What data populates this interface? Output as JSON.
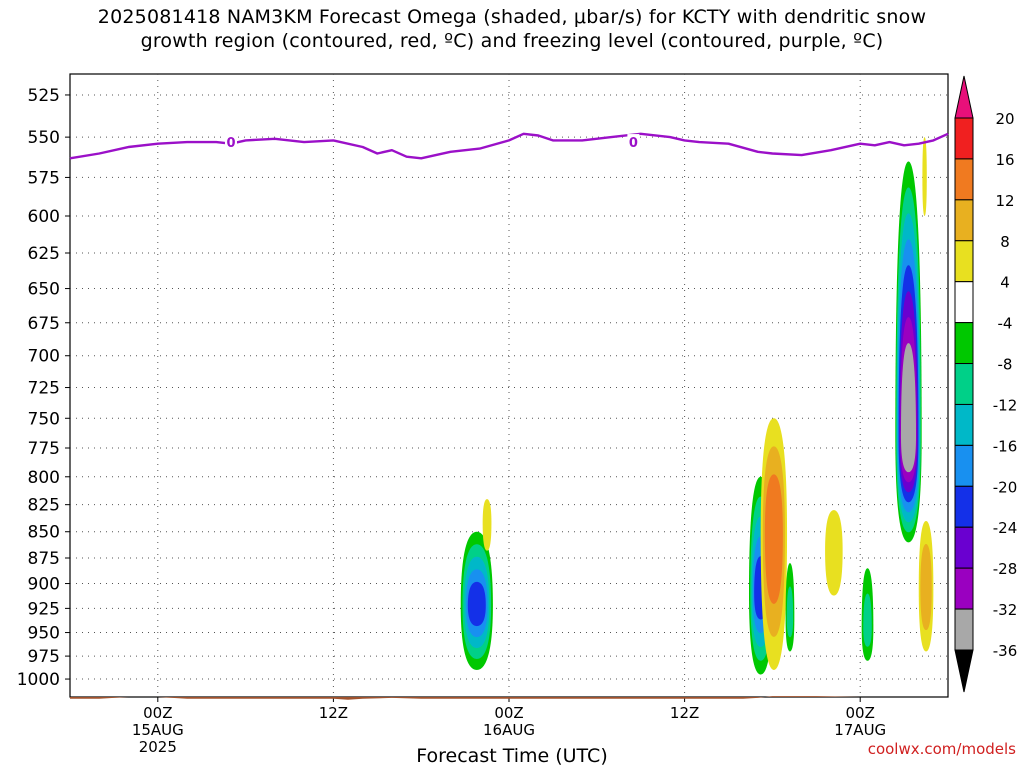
{
  "title_line1": "2025081418 NAM3KM Forecast Omega (shaded, μbar/s) for KCTY with dendritic snow",
  "title_line2": "growth region (contoured, red, ºC) and freezing level (contoured, purple, ºC)",
  "watermark": "coolwx.com/models",
  "chart_data": {
    "type": "heatmap",
    "xlabel": "Forecast Time (UTC)",
    "ylabel": "",
    "y_axis": {
      "log_scale": true,
      "inverted": true,
      "ylim": [
        1020,
        513
      ],
      "ticks": [
        525,
        550,
        575,
        600,
        625,
        650,
        675,
        700,
        725,
        750,
        775,
        800,
        825,
        850,
        875,
        900,
        925,
        950,
        975,
        1000
      ]
    },
    "x_axis": {
      "xlim_hours": [
        -6,
        54
      ],
      "ticks": [
        {
          "hour": 0,
          "labels": [
            "00Z",
            "15AUG",
            "2025"
          ]
        },
        {
          "hour": 12,
          "labels": [
            "12Z"
          ]
        },
        {
          "hour": 24,
          "labels": [
            "00Z",
            "16AUG"
          ]
        },
        {
          "hour": 36,
          "labels": [
            "12Z"
          ]
        },
        {
          "hour": 48,
          "labels": [
            "00Z",
            "17AUG"
          ]
        }
      ]
    },
    "grid": true,
    "colorbar": {
      "labels": [
        "20",
        "16",
        "12",
        "8",
        "4",
        "-4",
        "-8",
        "-12",
        "-16",
        "-20",
        "-24",
        "-28",
        "-32",
        "-36"
      ],
      "colors": [
        "#e8107a",
        "#f02020",
        "#f07a20",
        "#e8b020",
        "#e8e020",
        "#ffffff",
        "#00c800",
        "#00d088",
        "#00b8c8",
        "#1890f0",
        "#1430e8",
        "#6a00d0",
        "#9a00c0",
        "#a8a8a8",
        "#000000"
      ]
    },
    "freezing_level": {
      "color": "#9b10c8",
      "label": "0",
      "points": [
        [
          -6,
          563
        ],
        [
          -4,
          560
        ],
        [
          -2,
          556
        ],
        [
          0,
          554
        ],
        [
          2,
          553
        ],
        [
          4,
          553
        ],
        [
          5,
          554
        ],
        [
          6,
          552
        ],
        [
          8,
          551
        ],
        [
          10,
          553
        ],
        [
          12,
          552
        ],
        [
          14,
          556
        ],
        [
          15,
          560
        ],
        [
          16,
          558
        ],
        [
          17,
          562
        ],
        [
          18,
          563
        ],
        [
          19,
          561
        ],
        [
          20,
          559
        ],
        [
          22,
          557
        ],
        [
          24,
          552
        ],
        [
          25,
          548
        ],
        [
          26,
          549
        ],
        [
          27,
          552
        ],
        [
          29,
          552
        ],
        [
          31,
          550
        ],
        [
          33,
          548
        ],
        [
          35,
          550
        ],
        [
          36,
          552
        ],
        [
          37,
          553
        ],
        [
          39,
          554
        ],
        [
          41,
          559
        ],
        [
          42,
          560
        ],
        [
          44,
          561
        ],
        [
          46,
          558
        ],
        [
          48,
          554
        ],
        [
          49,
          555
        ],
        [
          50,
          553
        ],
        [
          51,
          555
        ],
        [
          52,
          554
        ],
        [
          53,
          552
        ],
        [
          54,
          548
        ]
      ]
    },
    "omega_features": [
      {
        "hour": 21.8,
        "p": 922,
        "hw": 1.1,
        "top": 850,
        "bot": 990,
        "peak": -20
      },
      {
        "hour": 22.5,
        "p": 842,
        "hw": 0.3,
        "top": 820,
        "bot": 868,
        "peak": 6
      },
      {
        "hour": 41.2,
        "p": 910,
        "hw": 0.8,
        "top": 800,
        "bot": 995,
        "peak": -20
      },
      {
        "hour": 42.1,
        "p": 852,
        "hw": 0.9,
        "top": 750,
        "bot": 990,
        "peak": 14
      },
      {
        "hour": 43.2,
        "p": 935,
        "hw": 0.3,
        "top": 880,
        "bot": 970,
        "peak": -8
      },
      {
        "hour": 46.2,
        "p": 868,
        "hw": 0.6,
        "top": 830,
        "bot": 912,
        "peak": 6
      },
      {
        "hour": 48.5,
        "p": 945,
        "hw": 0.4,
        "top": 885,
        "bot": 980,
        "peak": -8
      },
      {
        "hour": 51.3,
        "p": 765,
        "hw": 0.9,
        "top": 565,
        "bot": 860,
        "peak": -36
      },
      {
        "hour": 52.5,
        "p": 905,
        "hw": 0.5,
        "top": 840,
        "bot": 970,
        "peak": 10
      },
      {
        "hour": 52.4,
        "p": 575,
        "hw": 0.15,
        "top": 550,
        "bot": 600,
        "peak": 5
      }
    ],
    "surface": {
      "color": "#a0522d",
      "points": [
        [
          -6,
          1022
        ],
        [
          -4,
          1022
        ],
        [
          -3,
          1021
        ],
        [
          -2,
          1020
        ],
        [
          0,
          1020
        ],
        [
          1,
          1021
        ],
        [
          2,
          1022
        ],
        [
          6,
          1022
        ],
        [
          12,
          1022
        ],
        [
          13,
          1023
        ],
        [
          14,
          1022
        ],
        [
          16,
          1021
        ],
        [
          18,
          1022
        ],
        [
          22,
          1022
        ],
        [
          24,
          1022
        ],
        [
          30,
          1022
        ],
        [
          36,
          1022
        ],
        [
          40,
          1022
        ],
        [
          41,
          1021
        ],
        [
          42,
          1019
        ],
        [
          45,
          1019
        ],
        [
          48,
          1020
        ],
        [
          54,
          1020
        ]
      ]
    }
  }
}
